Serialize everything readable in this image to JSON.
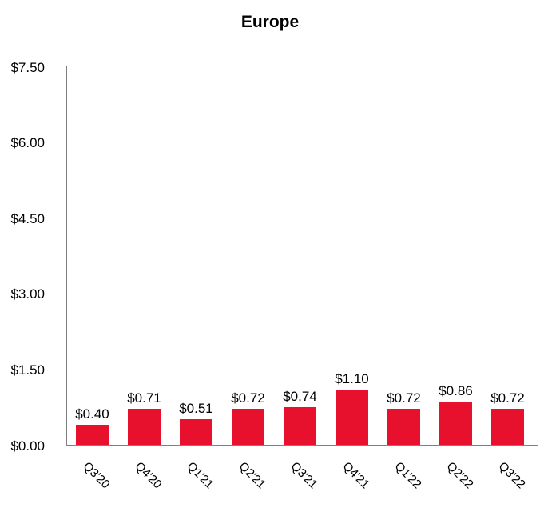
{
  "chart_data": {
    "type": "bar",
    "title": "Europe",
    "categories": [
      "Q3'20",
      "Q4'20",
      "Q1'21",
      "Q2'21",
      "Q3'21",
      "Q4'21",
      "Q1'22",
      "Q2'22",
      "Q3'22"
    ],
    "values": [
      0.4,
      0.71,
      0.51,
      0.72,
      0.74,
      1.1,
      0.72,
      0.86,
      0.72
    ],
    "value_labels": [
      "$0.40",
      "$0.71",
      "$0.51",
      "$0.72",
      "$0.74",
      "$1.10",
      "$0.72",
      "$0.86",
      "$0.72"
    ],
    "xlabel": "",
    "ylabel": "",
    "ylim": [
      0,
      7.5
    ],
    "y_ticks": [
      0,
      1.5,
      3.0,
      4.5,
      6.0,
      7.5
    ],
    "y_tick_labels": [
      "$0.00",
      "$1.50",
      "$3.00",
      "$4.50",
      "$6.00",
      "$7.50"
    ],
    "grid": "off",
    "legend": "none",
    "bar_color": "#e8112d",
    "axis_color": "#7f7f7f",
    "text_color": "#000000"
  }
}
